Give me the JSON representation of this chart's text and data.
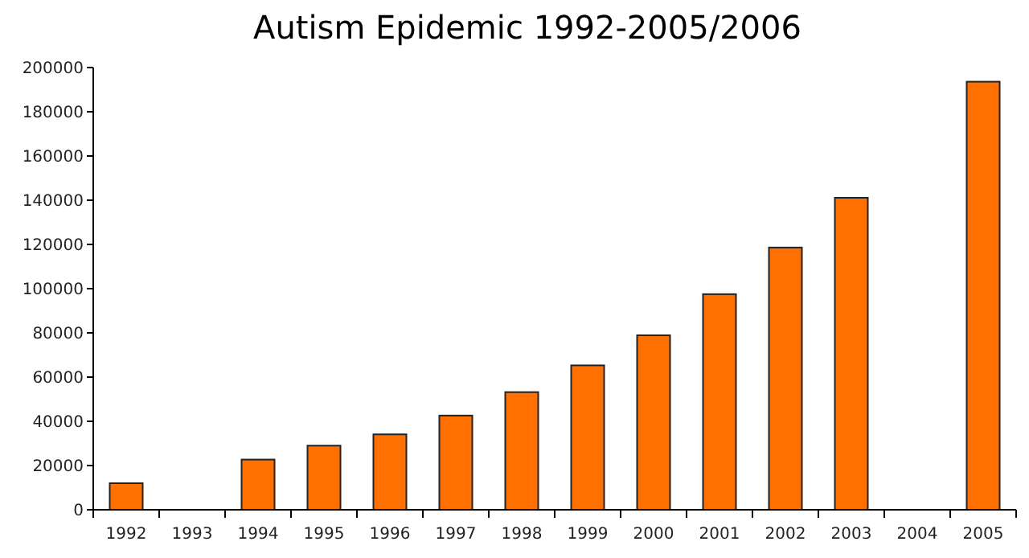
{
  "chart_data": {
    "type": "bar",
    "title": "Autism Epidemic 1992-2005/2006",
    "categories": [
      "1992",
      "1993",
      "1994",
      "1995",
      "1996",
      "1997",
      "1998",
      "1999",
      "2000",
      "2001",
      "2002",
      "2003",
      "2004",
      "2005"
    ],
    "values": [
      12000,
      null,
      22700,
      29000,
      34100,
      42600,
      53200,
      65300,
      78900,
      97500,
      118600,
      141100,
      null,
      193600
    ],
    "color": "#ff7000",
    "ylim": [
      0,
      200000
    ],
    "yticks": [
      0,
      20000,
      40000,
      60000,
      80000,
      100000,
      120000,
      140000,
      160000,
      180000,
      200000
    ],
    "grid": false
  }
}
